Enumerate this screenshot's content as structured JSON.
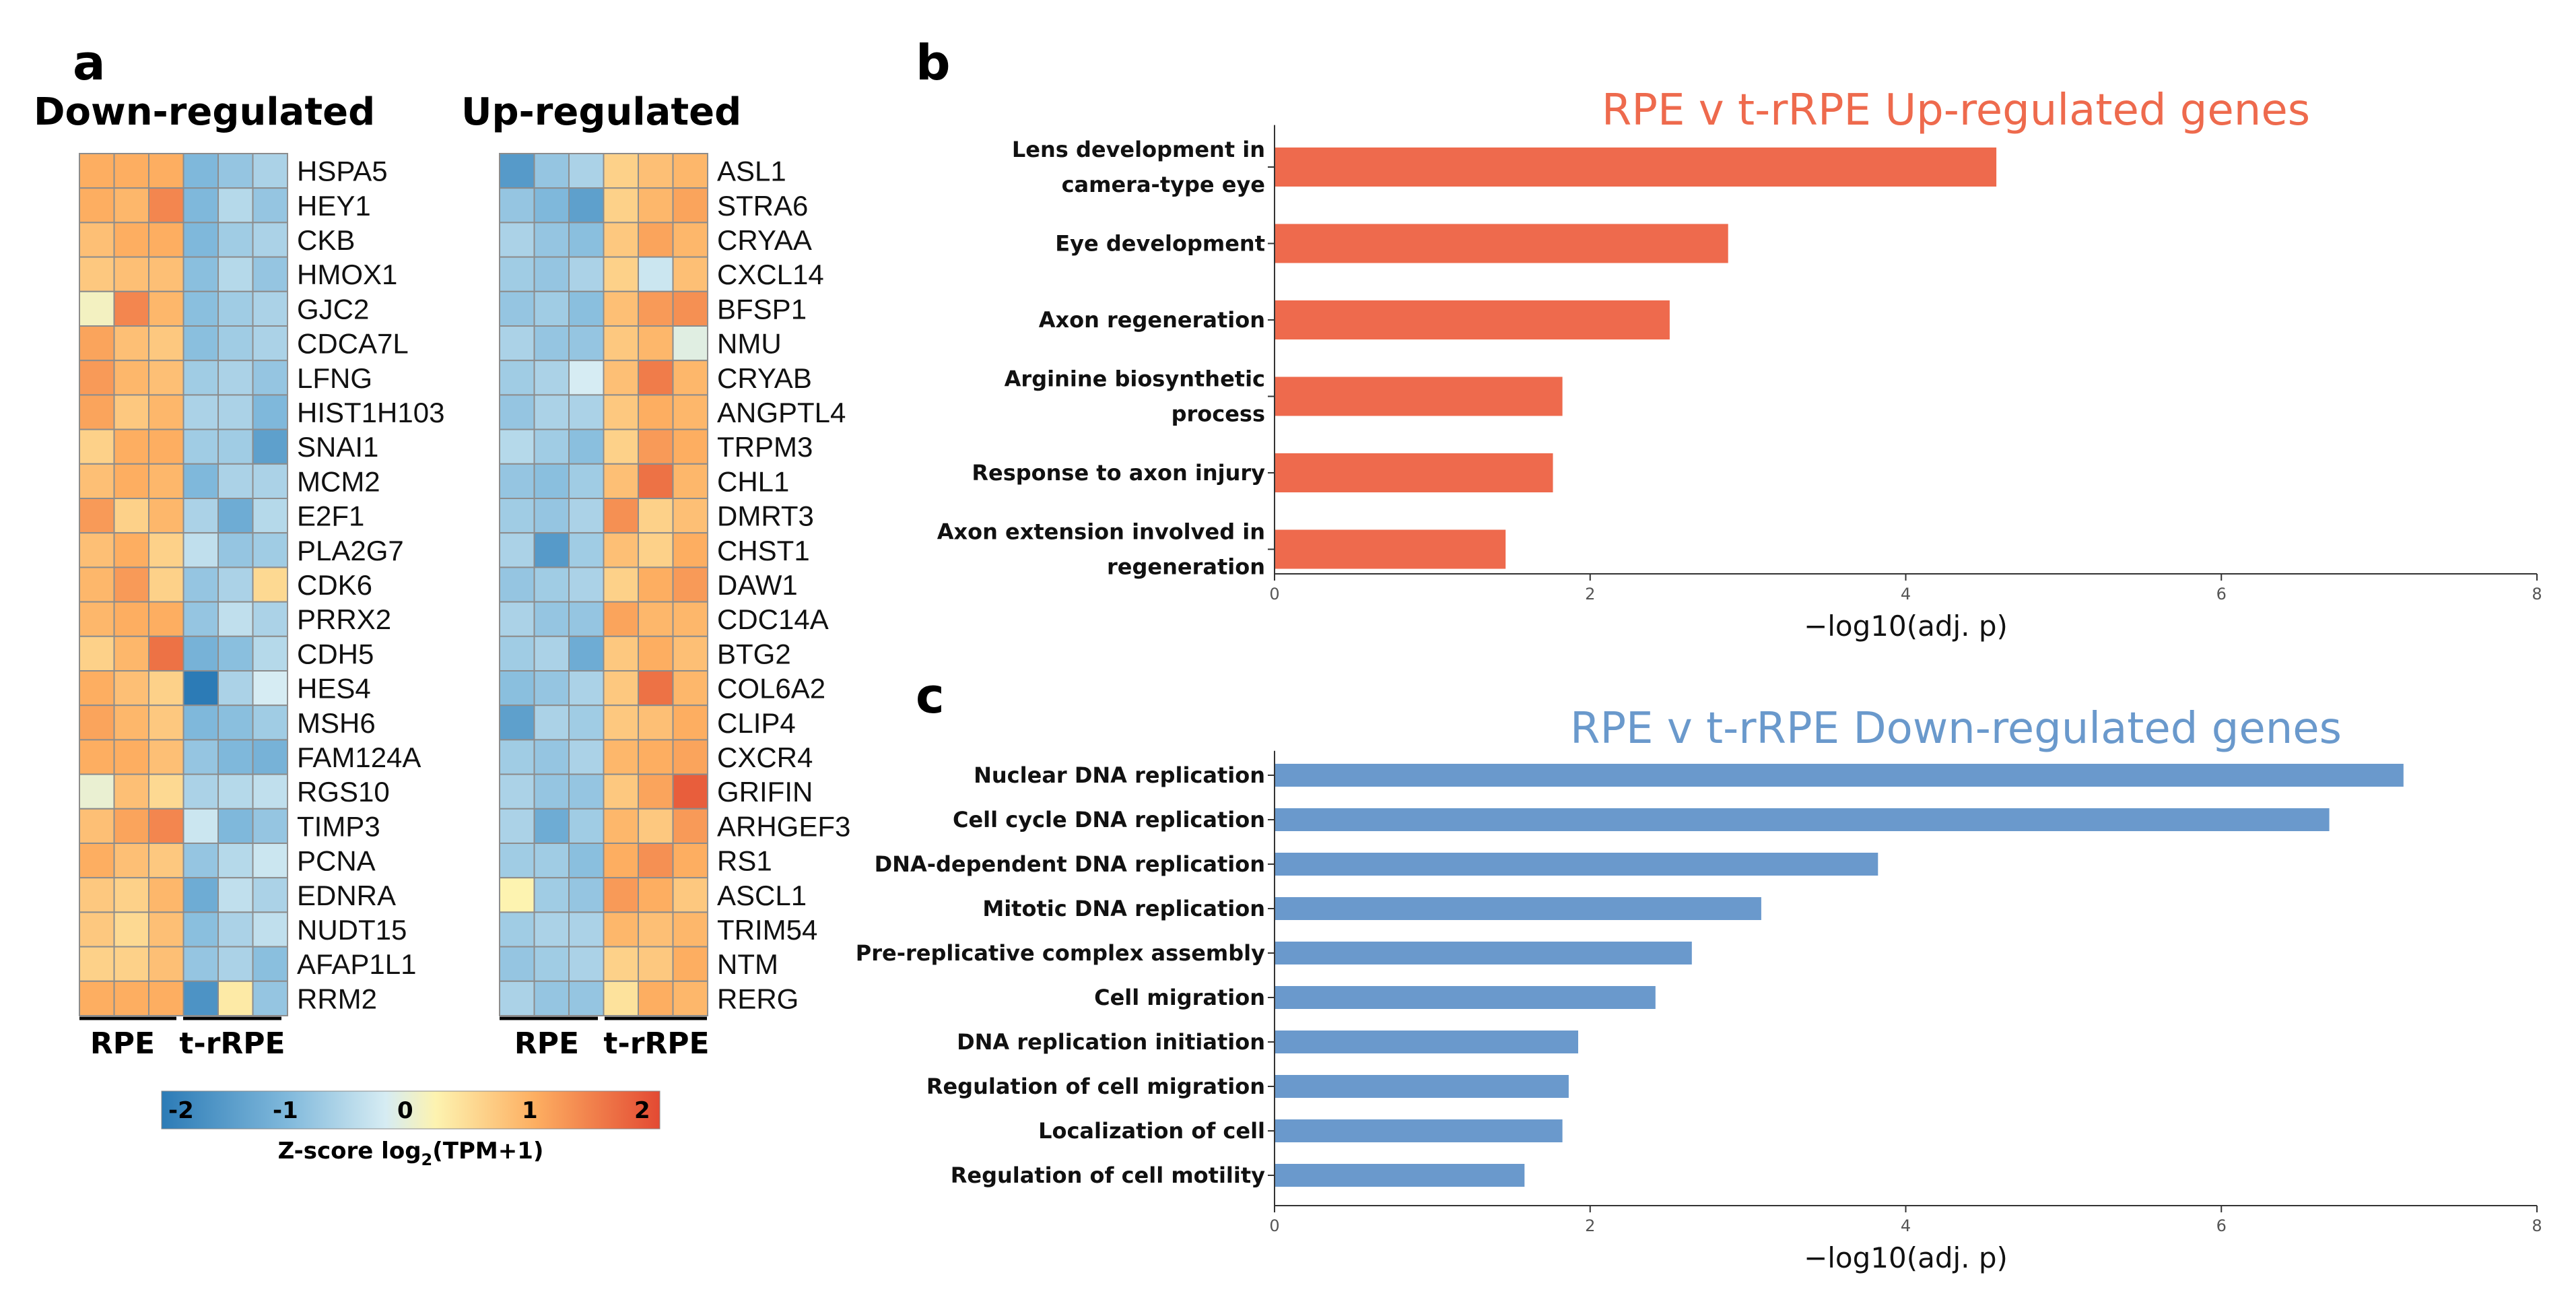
{
  "figure": {
    "panels": {
      "a": "a",
      "b": "b",
      "c": "c"
    }
  },
  "heatmaps": {
    "colorbar": {
      "ticks": [
        "-2",
        "-1",
        "0",
        "1",
        "2"
      ],
      "title_main": "Z-score log",
      "title_sub": "2",
      "title_tail": "(TPM+1)",
      "colors": [
        "#2c7bb6",
        "#7fb8db",
        "#d6ecf3",
        "#fdf3b0",
        "#fdae61",
        "#e34a33"
      ]
    },
    "groups": [
      "RPE",
      "t-rRPE"
    ],
    "down": {
      "title": "Down-regulated",
      "genes": [
        "HSPA5",
        "HEY1",
        "CKB",
        "HMOX1",
        "GJC2",
        "CDCA7L",
        "LFNG",
        "HIST1H103",
        "SNAI1",
        "MCM2",
        "E2F1",
        "PLA2G7",
        "CDK6",
        "PRRX2",
        "CDH5",
        "HES4",
        "MSH6",
        "FAM124A",
        "RGS10",
        "TIMP3",
        "PCNA",
        "EDNRA",
        "NUDT15",
        "AFAP1L1",
        "RRM2"
      ],
      "values": [
        [
          1.0,
          1.0,
          1.0,
          -1.0,
          -0.8,
          -0.6
        ],
        [
          1.0,
          0.9,
          1.4,
          -1.0,
          -0.5,
          -0.8
        ],
        [
          0.8,
          1.0,
          1.0,
          -1.0,
          -0.7,
          -0.6
        ],
        [
          0.7,
          0.8,
          0.8,
          -0.9,
          -0.5,
          -0.8
        ],
        [
          0.1,
          1.4,
          0.9,
          -0.9,
          -0.7,
          -0.6
        ],
        [
          1.1,
          0.8,
          0.7,
          -0.9,
          -0.7,
          -0.6
        ],
        [
          1.2,
          0.9,
          0.8,
          -0.7,
          -0.6,
          -0.8
        ],
        [
          1.1,
          0.7,
          0.9,
          -0.6,
          -0.6,
          -1.0
        ],
        [
          0.6,
          1.0,
          1.0,
          -0.7,
          -0.7,
          -1.4
        ],
        [
          0.8,
          1.0,
          0.9,
          -1.0,
          -0.6,
          -0.6
        ],
        [
          1.2,
          0.6,
          0.9,
          -0.6,
          -1.2,
          -0.5
        ],
        [
          0.8,
          1.0,
          0.6,
          -0.4,
          -0.8,
          -0.7
        ],
        [
          0.9,
          1.2,
          0.6,
          -0.8,
          -0.6,
          0.5
        ],
        [
          0.9,
          1.0,
          1.0,
          -0.8,
          -0.4,
          -0.6
        ],
        [
          0.6,
          0.9,
          1.6,
          -1.1,
          -0.9,
          -0.5
        ],
        [
          1.0,
          0.8,
          0.6,
          -2.0,
          -0.6,
          -0.2
        ],
        [
          1.1,
          0.9,
          0.7,
          -1.0,
          -0.9,
          -0.7
        ],
        [
          1.0,
          1.0,
          0.8,
          -0.8,
          -1.0,
          -1.1
        ],
        [
          0.0,
          0.8,
          0.5,
          -0.6,
          -0.5,
          -0.4
        ],
        [
          0.8,
          1.1,
          1.4,
          -0.3,
          -1.0,
          -0.8
        ],
        [
          1.0,
          0.8,
          0.7,
          -0.8,
          -0.5,
          -0.3
        ],
        [
          0.7,
          0.6,
          0.9,
          -1.2,
          -0.4,
          -0.6
        ],
        [
          0.7,
          0.5,
          0.8,
          -0.9,
          -0.6,
          -0.4
        ],
        [
          0.6,
          0.6,
          0.8,
          -0.8,
          -0.6,
          -0.9
        ],
        [
          1.0,
          1.0,
          1.0,
          -1.6,
          0.3,
          -0.8
        ]
      ]
    },
    "up": {
      "title": "Up-regulated",
      "genes": [
        "ASL1",
        "STRA6",
        "CRYAA",
        "CXCL14",
        "BFSP1",
        "NMU",
        "CRYAB",
        "ANGPTL4",
        "TRPM3",
        "CHL1",
        "DMRT3",
        "CHST1",
        "DAW1",
        "CDC14A",
        "BTG2",
        "COL6A2",
        "CLIP4",
        "CXCR4",
        "GRIFIN",
        "ARHGEF3",
        "RS1",
        "ASCL1",
        "TRIM54",
        "NTM",
        "RERG"
      ],
      "values": [
        [
          -1.5,
          -0.8,
          -0.6,
          0.6,
          0.8,
          0.9
        ],
        [
          -0.8,
          -1.0,
          -1.4,
          0.6,
          0.9,
          1.1
        ],
        [
          -0.6,
          -0.8,
          -0.9,
          0.7,
          1.1,
          0.9
        ],
        [
          -0.7,
          -0.8,
          -0.6,
          0.6,
          -0.3,
          0.8
        ],
        [
          -0.8,
          -0.7,
          -0.9,
          0.8,
          1.2,
          1.3
        ],
        [
          -0.6,
          -0.8,
          -0.8,
          0.7,
          0.9,
          -0.1
        ],
        [
          -0.7,
          -0.6,
          -0.2,
          0.8,
          1.5,
          0.9
        ],
        [
          -0.8,
          -0.6,
          -0.6,
          0.7,
          1.0,
          0.9
        ],
        [
          -0.5,
          -0.7,
          -0.9,
          0.6,
          1.2,
          1.0
        ],
        [
          -0.8,
          -0.9,
          -0.7,
          0.8,
          1.6,
          0.9
        ],
        [
          -0.7,
          -0.8,
          -0.6,
          1.3,
          0.6,
          0.8
        ],
        [
          -0.6,
          -1.5,
          -0.7,
          0.8,
          0.6,
          1.0
        ],
        [
          -0.8,
          -0.7,
          -0.6,
          0.6,
          1.0,
          1.2
        ],
        [
          -0.6,
          -0.8,
          -0.8,
          1.1,
          0.9,
          0.9
        ],
        [
          -0.7,
          -0.6,
          -1.2,
          0.7,
          1.0,
          0.8
        ],
        [
          -0.9,
          -0.8,
          -0.6,
          0.7,
          1.6,
          0.9
        ],
        [
          -1.4,
          -0.6,
          -0.7,
          0.7,
          0.8,
          1.0
        ],
        [
          -0.7,
          -0.8,
          -0.6,
          0.9,
          1.0,
          1.1
        ],
        [
          -0.6,
          -0.8,
          -0.8,
          0.7,
          1.1,
          1.8
        ],
        [
          -0.6,
          -1.2,
          -0.7,
          0.9,
          0.7,
          1.2
        ],
        [
          -0.7,
          -0.7,
          -0.9,
          1.0,
          1.3,
          1.0
        ],
        [
          0.2,
          -0.7,
          -0.8,
          1.2,
          1.0,
          0.7
        ],
        [
          -0.7,
          -0.6,
          -0.6,
          0.9,
          0.8,
          0.9
        ],
        [
          -0.8,
          -0.7,
          -0.6,
          0.6,
          0.7,
          1.0
        ],
        [
          -0.6,
          -0.8,
          -0.8,
          0.4,
          1.0,
          0.9
        ]
      ]
    }
  },
  "chart_data": [
    {
      "type": "bar",
      "orientation": "horizontal",
      "title": "RPE v t-rRPE Up-regulated genes",
      "title_color": "#ee6a4d",
      "bar_color": "#ee6a4d",
      "categories": [
        [
          "Lens development in",
          "camera-type eye"
        ],
        [
          "Eye development"
        ],
        [
          "Axon regeneration"
        ],
        [
          "Arginine biosynthetic",
          "process"
        ],
        [
          "Response to axon injury"
        ],
        [
          "Axon extension involved in",
          "regeneration"
        ]
      ],
      "values": [
        4.57,
        2.87,
        2.5,
        1.82,
        1.76,
        1.46
      ],
      "xlabel": "−log10(adj. p)",
      "xlim": [
        0,
        8
      ],
      "xticks": [
        "0",
        "2",
        "4",
        "6",
        "8"
      ]
    },
    {
      "type": "bar",
      "orientation": "horizontal",
      "title": "RPE v t-rRPE Down-regulated genes",
      "title_color": "#6a99cc",
      "bar_color": "#6a99cc",
      "categories": [
        [
          "Nuclear DNA replication"
        ],
        [
          "Cell cycle DNA replication"
        ],
        [
          "DNA-dependent DNA replication"
        ],
        [
          "Mitotic DNA replication"
        ],
        [
          "Pre-replicative complex assembly"
        ],
        [
          "Cell migration"
        ],
        [
          "DNA replication initiation"
        ],
        [
          "Regulation of cell migration"
        ],
        [
          "Localization of cell"
        ],
        [
          "Regulation of cell motility"
        ]
      ],
      "values": [
        7.15,
        6.68,
        3.82,
        3.08,
        2.64,
        2.41,
        1.92,
        1.86,
        1.82,
        1.58
      ],
      "xlabel": "−log10(adj. p)",
      "xlim": [
        0,
        8
      ],
      "xticks": [
        "0",
        "2",
        "4",
        "6",
        "8"
      ]
    }
  ]
}
